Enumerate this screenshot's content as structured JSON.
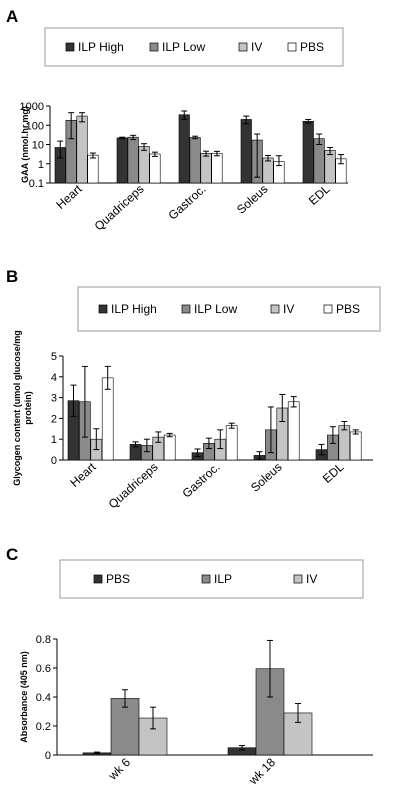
{
  "chart_data": [
    {
      "panel": "A",
      "type": "bar",
      "ylabel": "GAA (nmol.hr.mg)",
      "ylog": true,
      "ylim": [
        0.1,
        1000
      ],
      "yticks": [
        "0.1",
        "1",
        "10",
        "100",
        "1000"
      ],
      "categories": [
        "Heart",
        "Quadriceps",
        "Gastroc.",
        "Soleus",
        "EDL"
      ],
      "series": [
        {
          "name": "ILP High",
          "color": "#333333",
          "values": [
            7,
            22,
            350,
            200,
            160
          ],
          "err_low": [
            2,
            20,
            200,
            120,
            130
          ],
          "err_high": [
            15,
            24,
            550,
            300,
            200
          ]
        },
        {
          "name": "ILP Low",
          "color": "#8a8a8a",
          "values": [
            180,
            24,
            23,
            17,
            20
          ],
          "err_low": [
            20,
            18,
            20,
            0.2,
            10
          ],
          "err_high": [
            450,
            30,
            27,
            35,
            35
          ]
        },
        {
          "name": "IV",
          "color": "#c4c4c4",
          "values": [
            300,
            8,
            3.5,
            2,
            5
          ],
          "err_low": [
            150,
            5,
            2.5,
            1.4,
            3
          ],
          "err_high": [
            450,
            11,
            4.5,
            2.7,
            7
          ]
        },
        {
          "name": "PBS",
          "color": "#ffffff",
          "values": [
            2.8,
            3.2,
            3.5,
            1.3,
            1.8
          ],
          "err_low": [
            2,
            2.4,
            2.6,
            0.8,
            1
          ],
          "err_high": [
            3.6,
            4,
            4.4,
            2.6,
            3
          ]
        }
      ],
      "legend_position": "top"
    },
    {
      "panel": "B",
      "type": "bar",
      "ylabel": "Glycogen content (umol glucose/mg protein)",
      "ylim": [
        0,
        5
      ],
      "yticks": [
        "0",
        "1",
        "2",
        "3",
        "4",
        "5"
      ],
      "categories": [
        "Heart",
        "Quadriceps",
        "Gastroc.",
        "Soleus",
        "EDL"
      ],
      "series": [
        {
          "name": "ILP High",
          "color": "#333333",
          "values": [
            2.85,
            0.75,
            0.35,
            0.22,
            0.5
          ],
          "err": [
            0.75,
            0.12,
            0.18,
            0.18,
            0.25
          ]
        },
        {
          "name": "ILP Low",
          "color": "#8a8a8a",
          "values": [
            2.8,
            0.7,
            0.8,
            1.45,
            1.2
          ],
          "err": [
            1.7,
            0.3,
            0.25,
            1.1,
            0.4
          ]
        },
        {
          "name": "IV",
          "color": "#c4c4c4",
          "values": [
            1.0,
            1.1,
            1.0,
            2.5,
            1.65
          ],
          "err": [
            0.5,
            0.25,
            0.45,
            0.65,
            0.2
          ]
        },
        {
          "name": "PBS",
          "color": "#ffffff",
          "values": [
            3.95,
            1.2,
            1.65,
            2.8,
            1.35
          ],
          "err": [
            0.55,
            0.08,
            0.12,
            0.25,
            0.1
          ]
        }
      ],
      "legend_position": "top"
    },
    {
      "panel": "C",
      "type": "bar",
      "ylabel": "Absorbance (405 nm)",
      "ylim": [
        0,
        0.8
      ],
      "yticks": [
        "0",
        "0.2",
        "0.4",
        "0.6",
        "0.8"
      ],
      "categories": [
        "wk 6",
        "wk 18"
      ],
      "series": [
        {
          "name": "PBS",
          "color": "#333333",
          "values": [
            0.015,
            0.05
          ],
          "err": [
            0.005,
            0.015
          ]
        },
        {
          "name": "ILP",
          "color": "#8a8a8a",
          "values": [
            0.39,
            0.595
          ],
          "err": [
            0.06,
            0.195
          ]
        },
        {
          "name": "IV",
          "color": "#c4c4c4",
          "values": [
            0.255,
            0.29
          ],
          "err": [
            0.075,
            0.065
          ]
        }
      ],
      "legend_position": "top"
    }
  ]
}
